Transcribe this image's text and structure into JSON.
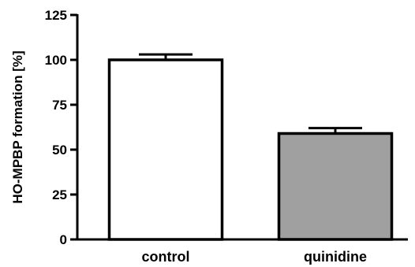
{
  "chart_data": {
    "type": "bar",
    "categories": [
      "control",
      "quinidine"
    ],
    "values": [
      100,
      59
    ],
    "errors": [
      3,
      3
    ],
    "bar_colors": [
      "#ffffff",
      "#a0a0a0"
    ],
    "ylabel": "HO-MPBP formation [%]",
    "xlabel": "",
    "ylim": [
      0,
      125
    ],
    "yticks": [
      0,
      25,
      50,
      75,
      100,
      125
    ],
    "ytick_labels": [
      "0",
      "25",
      "50",
      "75",
      "100",
      "125"
    ],
    "grid": false,
    "legend": "none"
  }
}
